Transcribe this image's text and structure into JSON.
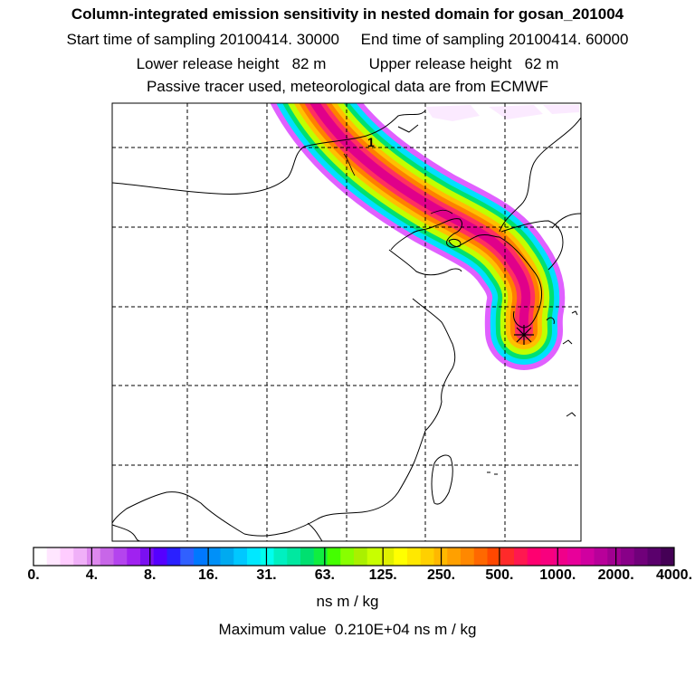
{
  "header": {
    "title": "Column-integrated emission sensitivity in nested domain for gosan_201004",
    "sampling_line": "Start time of sampling 20100414. 30000     End time of sampling 20100414. 60000",
    "release_line": "Lower release height   82 m          Upper release height   62 m",
    "tracer_line": "Passive tracer used, meteorological data are from ECMWF"
  },
  "map": {
    "contour_label": "1",
    "receptor_marker": "star-icon",
    "plume_colors": [
      "#e060ff",
      "#00e0ff",
      "#00e070",
      "#c0ff00",
      "#ffc000",
      "#ff8000",
      "#ff3060",
      "#e0008a"
    ]
  },
  "colorbar": {
    "swatches": [
      "#ffffff",
      "#ffe6ff",
      "#ffccff",
      "#f0b0f8",
      "#dd88ee",
      "#c866e8",
      "#b444ee",
      "#a022f0",
      "#7a10f0",
      "#5500ff",
      "#2a20ff",
      "#3060ff",
      "#0078ff",
      "#0090f8",
      "#00aaf0",
      "#00c8ff",
      "#00e8ff",
      "#00ffee",
      "#00f0c0",
      "#00e8a0",
      "#00e070",
      "#10ee40",
      "#44ff00",
      "#88ff00",
      "#aaf000",
      "#c8ff00",
      "#e0f000",
      "#ffff00",
      "#ffe800",
      "#ffd000",
      "#ffb800",
      "#ffa000",
      "#ff8800",
      "#ff6800",
      "#ff4800",
      "#ff2a2a",
      "#ff1850",
      "#ff0070",
      "#f8007e",
      "#f0008a",
      "#e8009a",
      "#d000a0",
      "#b8009a",
      "#a00090",
      "#880088",
      "#70007a",
      "#5a006c",
      "#440055"
    ],
    "tick_labels": [
      "0.",
      "4.",
      "8.",
      "16.",
      "31.",
      "63.",
      "125.",
      "250.",
      "500.",
      "1000.",
      "2000.",
      "4000."
    ],
    "units": "ns m / kg"
  },
  "footer": {
    "maximum_value": "Maximum value  0.210E+04 ns m / kg"
  }
}
